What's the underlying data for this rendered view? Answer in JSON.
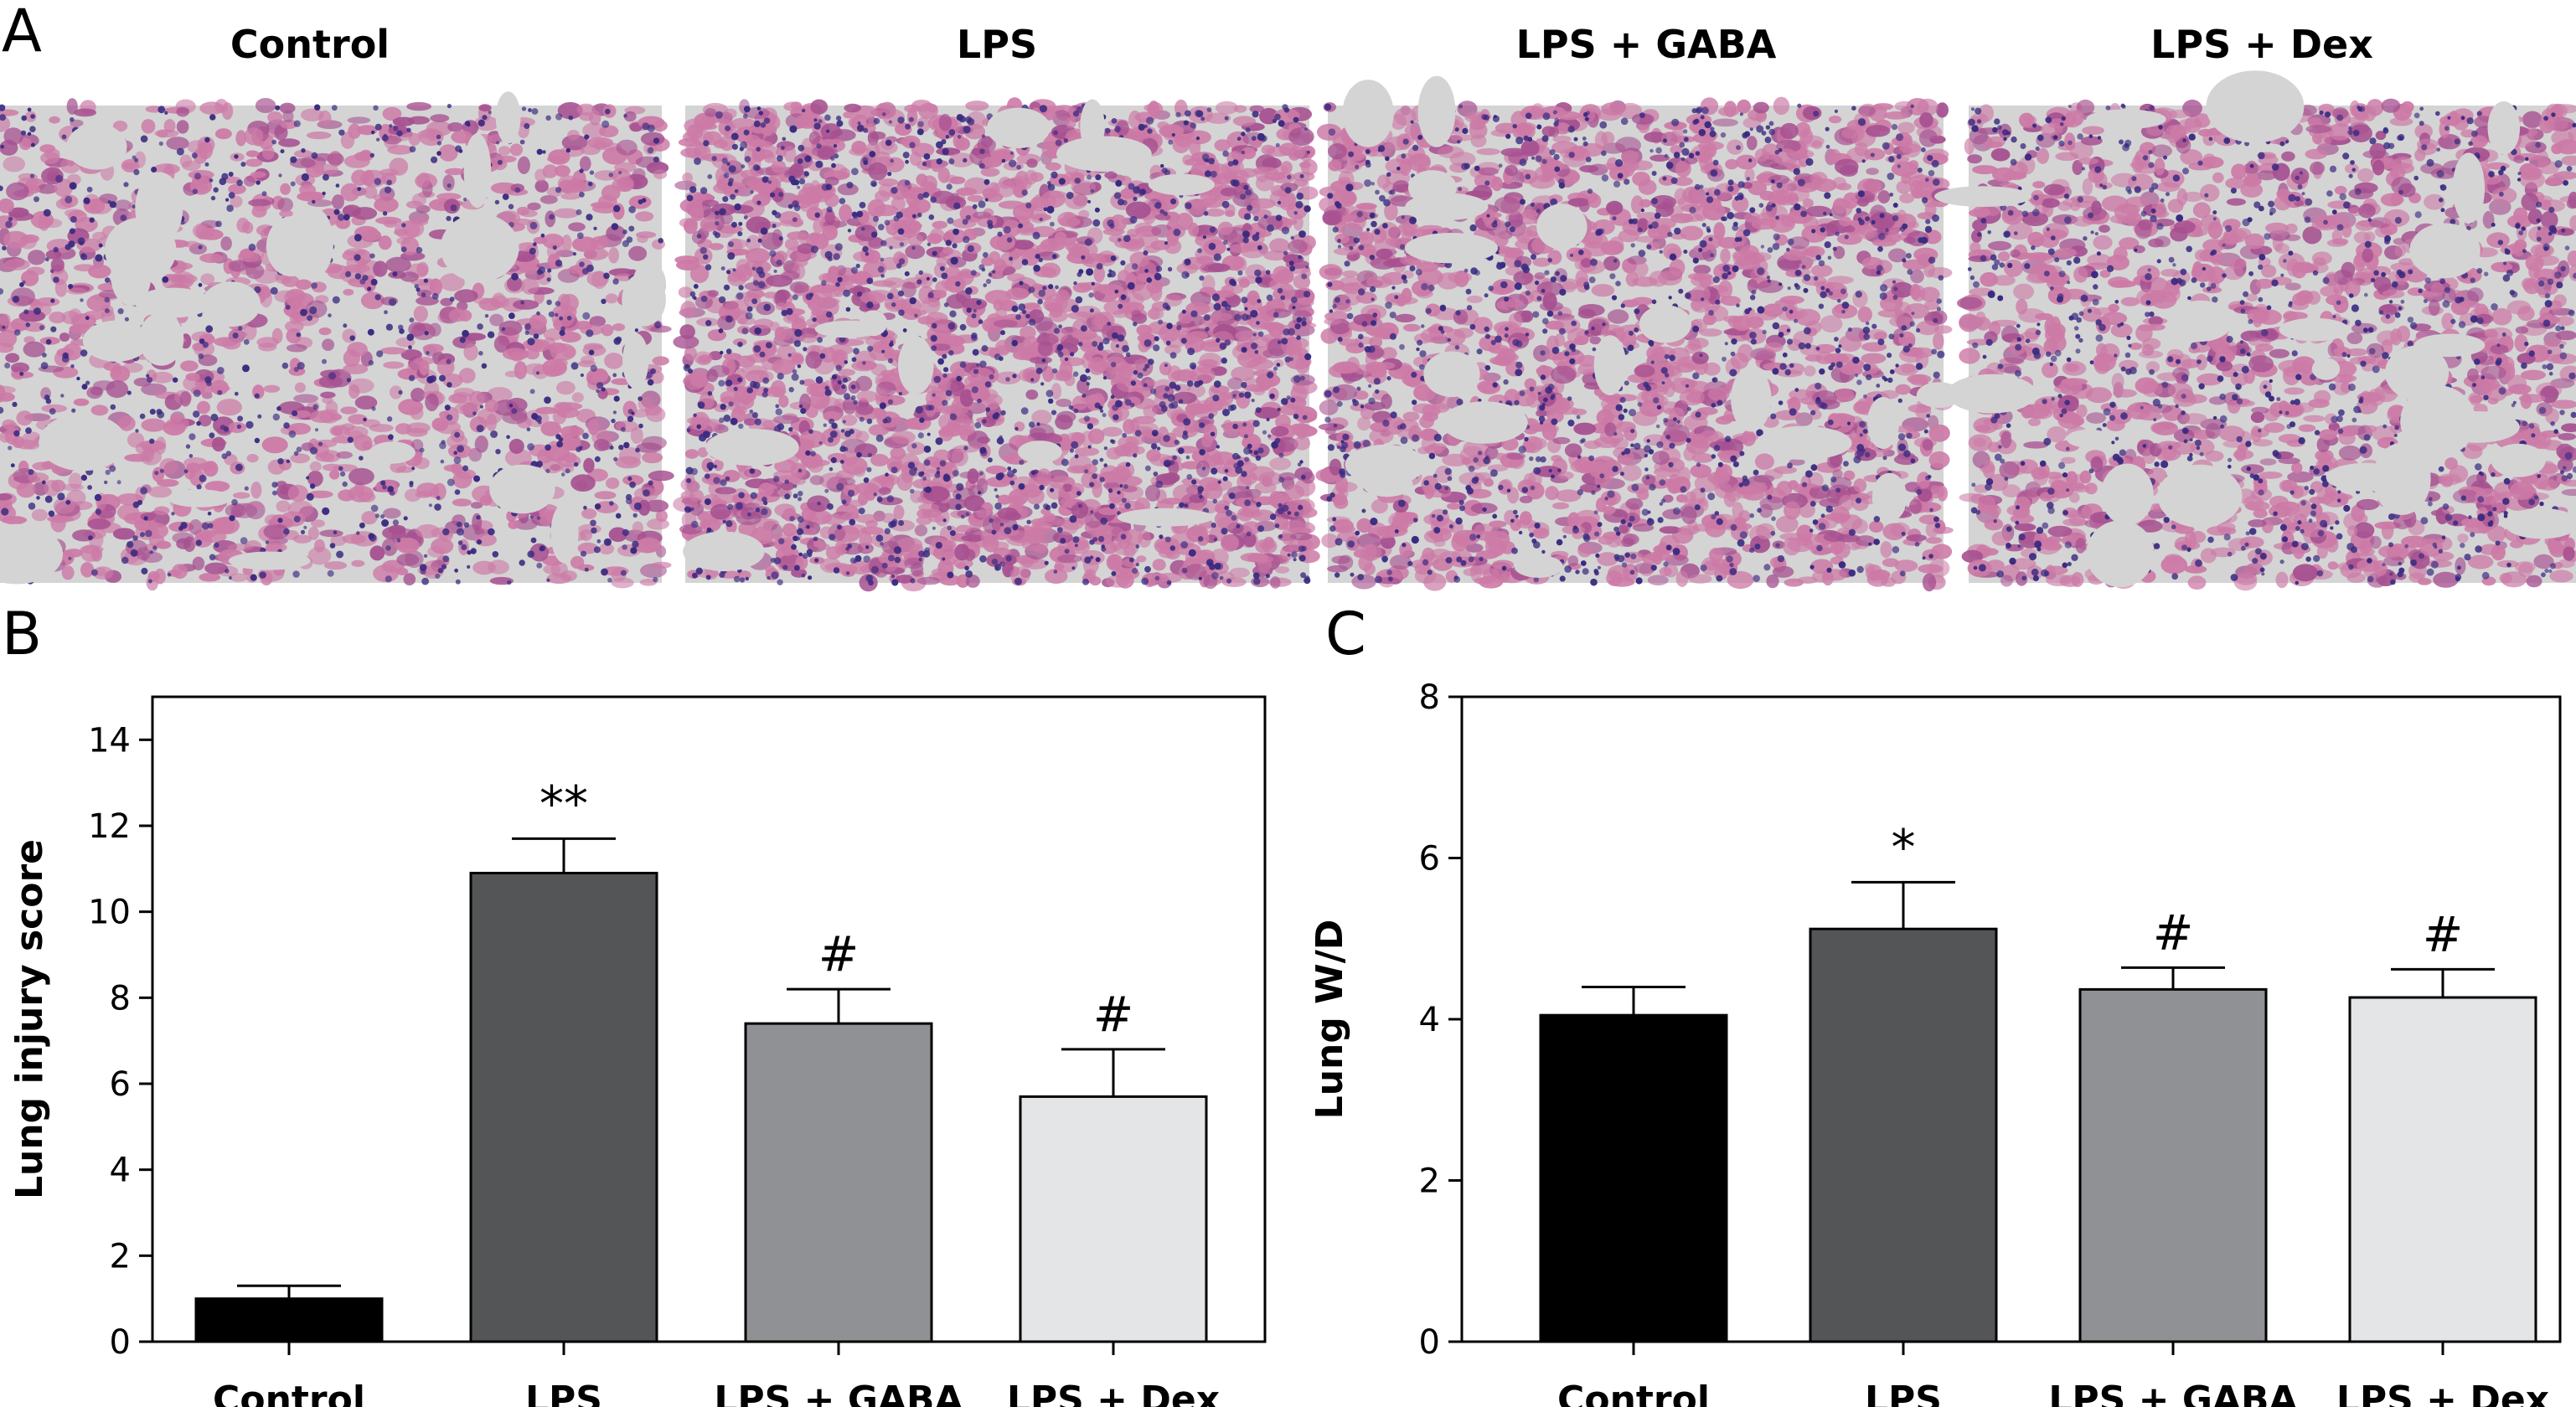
{
  "panels": {
    "a_label": "A",
    "b_label": "B",
    "c_label": "C"
  },
  "histology": {
    "groups": [
      "Control",
      "LPS",
      "LPS + GABA",
      "LPS + Dex"
    ],
    "colors": {
      "background": "#d4d4d4",
      "tissue": "#cc7aa6",
      "tissue_dark": "#a65090",
      "nuclei": "#3a2a80"
    },
    "density": [
      0.5,
      0.82,
      0.66,
      0.56
    ]
  },
  "chart_data": [
    {
      "panel": "B",
      "type": "bar",
      "categories": [
        "Control",
        "LPS",
        "LPS + GABA",
        "LPS + Dex"
      ],
      "values": [
        1.0,
        10.9,
        7.4,
        5.7
      ],
      "errors": [
        0.3,
        0.8,
        0.8,
        1.1
      ],
      "annotations": [
        "",
        "**",
        "#",
        "#"
      ],
      "ylabel": "Lung injury score",
      "xlabel": "",
      "ylim": [
        0,
        15
      ],
      "yticks": [
        0,
        2,
        4,
        6,
        8,
        10,
        12,
        14
      ],
      "colors": [
        "#000000",
        "#545556",
        "#909194",
        "#e4e5e6"
      ]
    },
    {
      "panel": "C",
      "type": "bar",
      "categories": [
        "Control",
        "LPS",
        "LPS + GABA",
        "LPS + Dex"
      ],
      "values": [
        4.05,
        5.12,
        4.37,
        4.27
      ],
      "errors": [
        0.35,
        0.58,
        0.27,
        0.35
      ],
      "annotations": [
        "",
        "*",
        "#",
        "#"
      ],
      "ylabel": "Lung W/D",
      "xlabel": "",
      "ylim": [
        0,
        8
      ],
      "yticks": [
        0,
        2,
        4,
        6,
        8
      ],
      "colors": [
        "#000000",
        "#545556",
        "#909194",
        "#e4e5e6"
      ]
    }
  ]
}
